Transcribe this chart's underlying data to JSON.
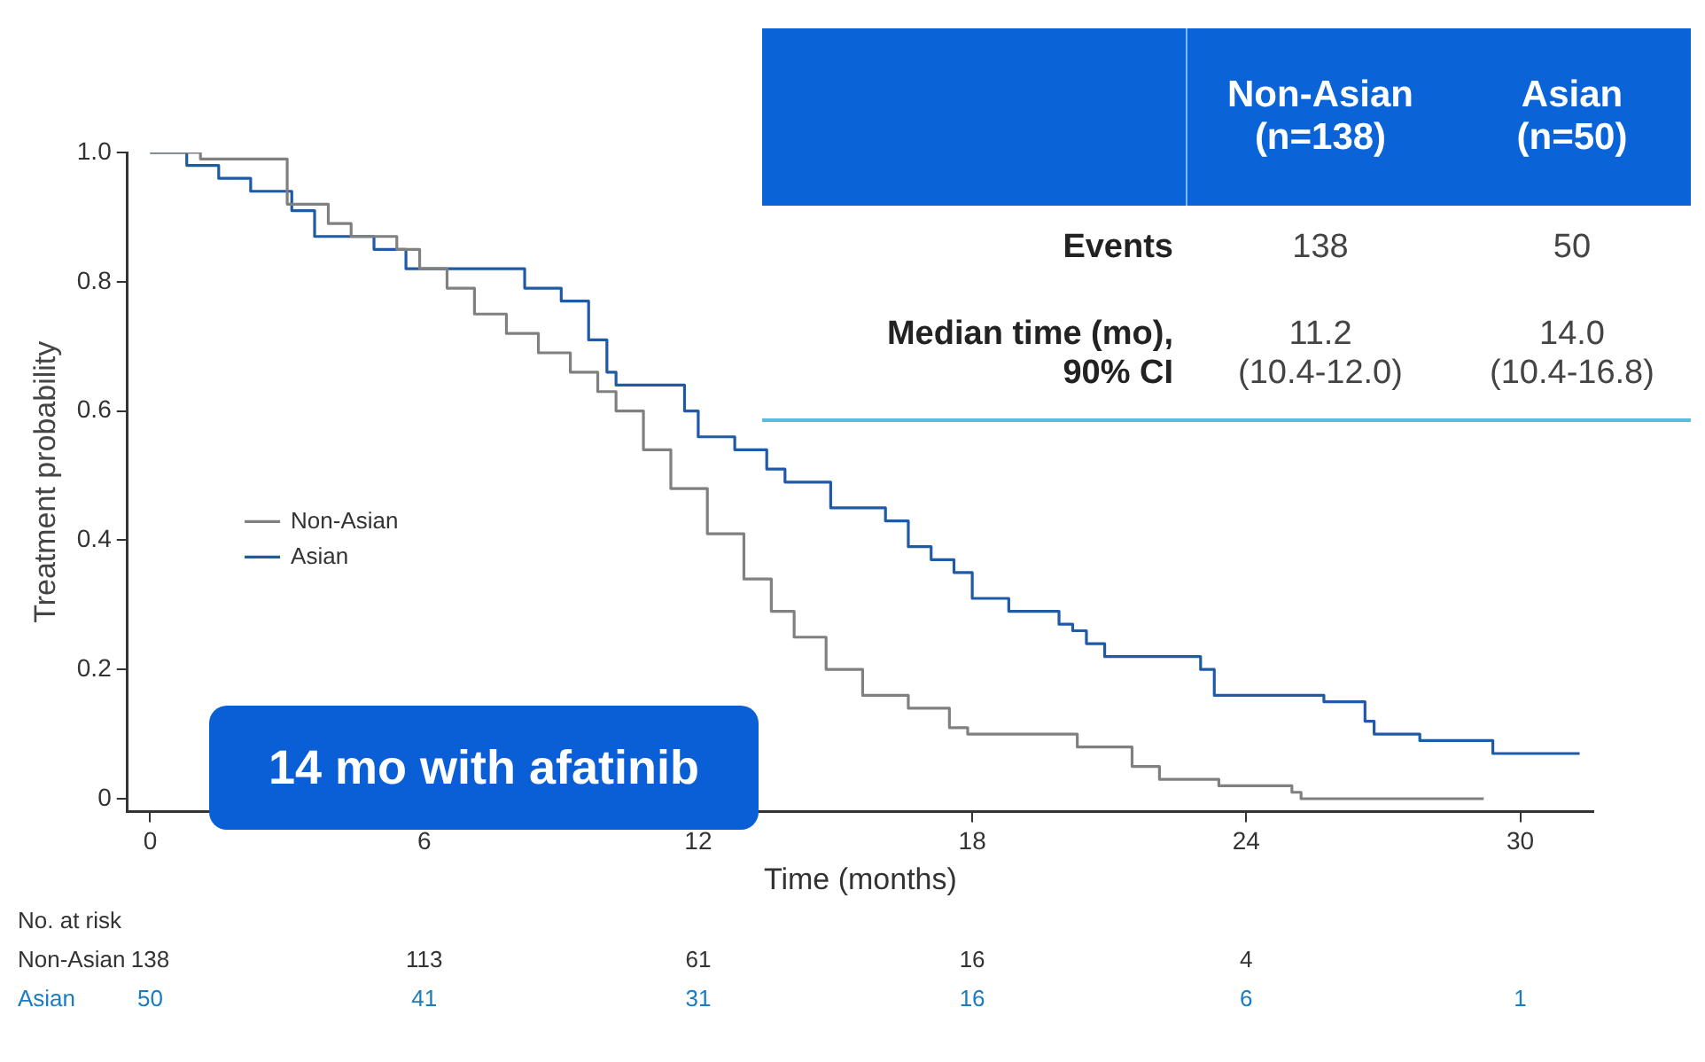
{
  "chart_data": {
    "type": "step",
    "xlabel": "Time (months)",
    "ylabel": "Treatment probability",
    "xlim": [
      -0.5,
      31.6
    ],
    "xticks": [
      0,
      6,
      12,
      18,
      24,
      30
    ],
    "ylim": [
      -0.02,
      1.0
    ],
    "yticks": [
      {
        "value": 0,
        "label": "0"
      },
      0.2,
      0.4,
      0.6,
      0.8,
      {
        "value": 1,
        "label": "1.0"
      }
    ],
    "grid": false,
    "legend": "left",
    "series": [
      {
        "name": "Non-Asian",
        "color": "#808080",
        "x": [
          0,
          1.1,
          3.0,
          3.9,
          4.4,
          5.4,
          5.9,
          6.5,
          7.1,
          7.8,
          8.5,
          9.2,
          9.8,
          10.2,
          10.8,
          11.4,
          12.2,
          13.0,
          13.6,
          14.1,
          14.8,
          15.6,
          16.6,
          17.5,
          17.9,
          20.3,
          21.5,
          22.1,
          23.4,
          25.0,
          25.2,
          29.2
        ],
        "values": [
          1.0,
          0.99,
          0.92,
          0.89,
          0.87,
          0.85,
          0.82,
          0.79,
          0.75,
          0.72,
          0.69,
          0.66,
          0.63,
          0.6,
          0.54,
          0.48,
          0.41,
          0.34,
          0.29,
          0.25,
          0.2,
          0.16,
          0.14,
          0.11,
          0.1,
          0.08,
          0.05,
          0.03,
          0.02,
          0.01,
          0,
          0
        ]
      },
      {
        "name": "Asian",
        "color": "#1f5aa6",
        "x": [
          0,
          0.8,
          1.5,
          2.2,
          3.1,
          3.6,
          4.9,
          5.6,
          8.2,
          9.0,
          9.6,
          10.0,
          10.2,
          11.7,
          12.0,
          12.8,
          13.5,
          13.9,
          14.9,
          16.1,
          16.6,
          17.1,
          17.6,
          18.0,
          18.8,
          19.9,
          20.2,
          20.5,
          20.9,
          23.0,
          23.3,
          25.7,
          26.6,
          26.8,
          27.8,
          29.4,
          31.3
        ],
        "values": [
          1.0,
          0.98,
          0.96,
          0.94,
          0.91,
          0.87,
          0.85,
          0.82,
          0.79,
          0.77,
          0.71,
          0.66,
          0.64,
          0.6,
          0.56,
          0.54,
          0.51,
          0.49,
          0.45,
          0.43,
          0.39,
          0.37,
          0.35,
          0.31,
          0.29,
          0.27,
          0.26,
          0.24,
          0.22,
          0.2,
          0.16,
          0.15,
          0.12,
          0.1,
          0.09,
          0.07,
          0.07
        ]
      }
    ],
    "annotations": [
      "Non-Asian (n=138)",
      "Asian (n=50)",
      "Events",
      "138",
      "50",
      "Median time (mo), 90% CI",
      "11.2 (10.4-12.0)",
      "14.0 (10.4-16.8)",
      "14 mo with afatinib",
      "No. at risk",
      "Non-Asian",
      "138",
      "113",
      "61",
      "16",
      "4",
      "Asian",
      "50",
      "41",
      "31",
      "16",
      "6",
      "1"
    ]
  }
}
